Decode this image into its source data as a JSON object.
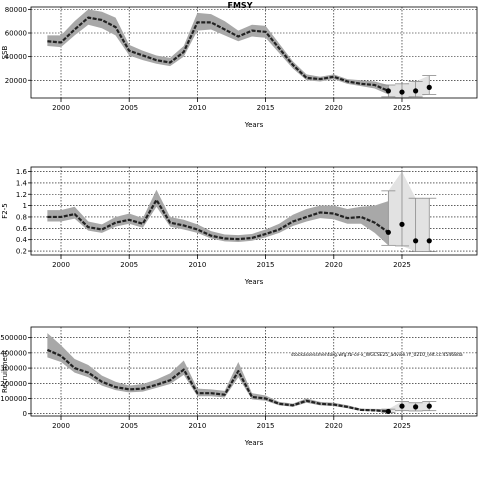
{
  "title": "FMSY",
  "chart_data": [
    {
      "type": "line",
      "title": "FMSY",
      "xlabel": "Years",
      "ylabel": "SSB",
      "xlim": [
        1997.8,
        2030.5
      ],
      "ylim": [
        5000,
        82000
      ],
      "xticks": [
        2000,
        2005,
        2010,
        2015,
        2020,
        2025
      ],
      "yticks": [
        20000,
        40000,
        60000,
        80000
      ],
      "ytick_labels": [
        "20000",
        "40000",
        "60000",
        "80000"
      ],
      "grid": true,
      "x": [
        1999,
        2000,
        2001,
        2002,
        2003,
        2004,
        2005,
        2006,
        2007,
        2008,
        2009,
        2010,
        2011,
        2012,
        2013,
        2014,
        2015,
        2016,
        2017,
        2018,
        2019,
        2020,
        2021,
        2022,
        2023,
        2024
      ],
      "y": [
        53000,
        52000,
        63000,
        73000,
        71000,
        65000,
        45000,
        41000,
        37000,
        35000,
        44000,
        69000,
        69000,
        63000,
        57000,
        62000,
        61000,
        47000,
        33000,
        22000,
        21000,
        23000,
        19000,
        17000,
        16000,
        11000
      ],
      "lower": [
        49000,
        48000,
        58000,
        67000,
        64000,
        58000,
        41000,
        37000,
        34000,
        32000,
        40000,
        62000,
        63000,
        58000,
        53000,
        57000,
        56000,
        43000,
        30000,
        20000,
        19000,
        21000,
        17000,
        15000,
        13000,
        8000
      ],
      "upper": [
        58000,
        58000,
        70000,
        80000,
        78000,
        73000,
        50000,
        45000,
        41000,
        39000,
        49000,
        77000,
        76000,
        70000,
        62000,
        67000,
        66000,
        51000,
        36000,
        25000,
        23000,
        25000,
        21000,
        20000,
        19000,
        16000
      ],
      "projection": {
        "x": [
          2024,
          2025,
          2026,
          2027
        ],
        "y": [
          11000,
          10000,
          11000,
          14000
        ],
        "lower": [
          6000,
          5000,
          6000,
          8000
        ],
        "upper": [
          16000,
          17000,
          19000,
          24000
        ]
      }
    },
    {
      "type": "line",
      "title": "",
      "xlabel": "Years",
      "ylabel": "F2-5",
      "xlim": [
        1997.8,
        2030.5
      ],
      "ylim": [
        0.13,
        1.68
      ],
      "xticks": [
        2000,
        2005,
        2010,
        2015,
        2020,
        2025
      ],
      "yticks": [
        0.2,
        0.4,
        0.6,
        0.8,
        1.0,
        1.2,
        1.4,
        1.6
      ],
      "ytick_labels": [
        "0.2",
        "0.4",
        "0.6",
        "0.8",
        "1",
        "1.2",
        "1.4",
        "1.6"
      ],
      "grid": true,
      "x": [
        1999,
        2000,
        2001,
        2002,
        2003,
        2004,
        2005,
        2006,
        2007,
        2008,
        2009,
        2010,
        2011,
        2012,
        2013,
        2014,
        2015,
        2016,
        2017,
        2018,
        2019,
        2020,
        2021,
        2022,
        2023,
        2024
      ],
      "y": [
        0.8,
        0.8,
        0.85,
        0.62,
        0.58,
        0.7,
        0.75,
        0.68,
        1.1,
        0.7,
        0.65,
        0.58,
        0.47,
        0.42,
        0.41,
        0.43,
        0.5,
        0.58,
        0.72,
        0.8,
        0.88,
        0.86,
        0.78,
        0.8,
        0.7,
        0.53
      ],
      "lower": [
        0.72,
        0.72,
        0.77,
        0.56,
        0.52,
        0.63,
        0.68,
        0.61,
        0.98,
        0.63,
        0.58,
        0.52,
        0.42,
        0.37,
        0.36,
        0.38,
        0.44,
        0.52,
        0.64,
        0.72,
        0.78,
        0.76,
        0.68,
        0.68,
        0.52,
        0.3
      ],
      "upper": [
        0.92,
        0.92,
        0.98,
        0.72,
        0.67,
        0.8,
        0.86,
        0.78,
        1.28,
        0.8,
        0.75,
        0.67,
        0.55,
        0.49,
        0.48,
        0.5,
        0.58,
        0.68,
        0.84,
        0.94,
        1.0,
        1.0,
        0.94,
        0.98,
        1.0,
        1.08
      ],
      "projection": {
        "x": [
          2024,
          2025,
          2026,
          2027
        ],
        "y": [
          0.53,
          0.67,
          0.38,
          0.38
        ],
        "lower": [
          0.3,
          0.29,
          0.19,
          0.19
        ],
        "upper": [
          1.26,
          1.6,
          1.13,
          1.13
        ]
      }
    },
    {
      "type": "line",
      "title": "",
      "xlabel": "Years",
      "ylabel": "Recruitment",
      "xlim": [
        1997.8,
        2030.5
      ],
      "ylim": [
        -15000,
        570000
      ],
      "xticks": [
        2000,
        2005,
        2010,
        2015,
        2020,
        2025
      ],
      "yticks": [
        0,
        100000,
        200000,
        300000,
        400000,
        500000
      ],
      "ytick_labels": [
        "0",
        "100000",
        "200000",
        "300000",
        "400000",
        "500000"
      ],
      "grid": true,
      "annotation": "stockassessmentorg.wfg.fb-ce-x_WGCSE25_advice.rY_0210_(elt.cc:45468da",
      "x": [
        1999,
        2000,
        2001,
        2002,
        2003,
        2004,
        2005,
        2006,
        2007,
        2008,
        2009,
        2010,
        2011,
        2012,
        2013,
        2014,
        2015,
        2016,
        2017,
        2018,
        2019,
        2020,
        2021,
        2022,
        2023,
        2024
      ],
      "y": [
        420000,
        380000,
        300000,
        270000,
        210000,
        175000,
        160000,
        165000,
        190000,
        220000,
        290000,
        135000,
        135000,
        125000,
        280000,
        110000,
        100000,
        65000,
        55000,
        85000,
        65000,
        60000,
        45000,
        25000,
        22000,
        15000
      ],
      "lower": [
        370000,
        340000,
        270000,
        240000,
        185000,
        155000,
        140000,
        145000,
        170000,
        195000,
        255000,
        115000,
        115000,
        107000,
        240000,
        94000,
        85000,
        55000,
        46000,
        72000,
        55000,
        50000,
        36000,
        19000,
        15000,
        8000
      ],
      "upper": [
        530000,
        450000,
        360000,
        320000,
        250000,
        210000,
        185000,
        195000,
        225000,
        265000,
        350000,
        165000,
        160000,
        150000,
        340000,
        135000,
        120000,
        78000,
        66000,
        100000,
        78000,
        72000,
        56000,
        33000,
        32000,
        30000
      ],
      "projection": {
        "x": [
          2024,
          2025,
          2026,
          2027
        ],
        "y": [
          15000,
          50000,
          45000,
          50000
        ],
        "lower": [
          8000,
          20000,
          18000,
          20000
        ],
        "upper": [
          30000,
          80000,
          72000,
          80000
        ]
      }
    }
  ]
}
